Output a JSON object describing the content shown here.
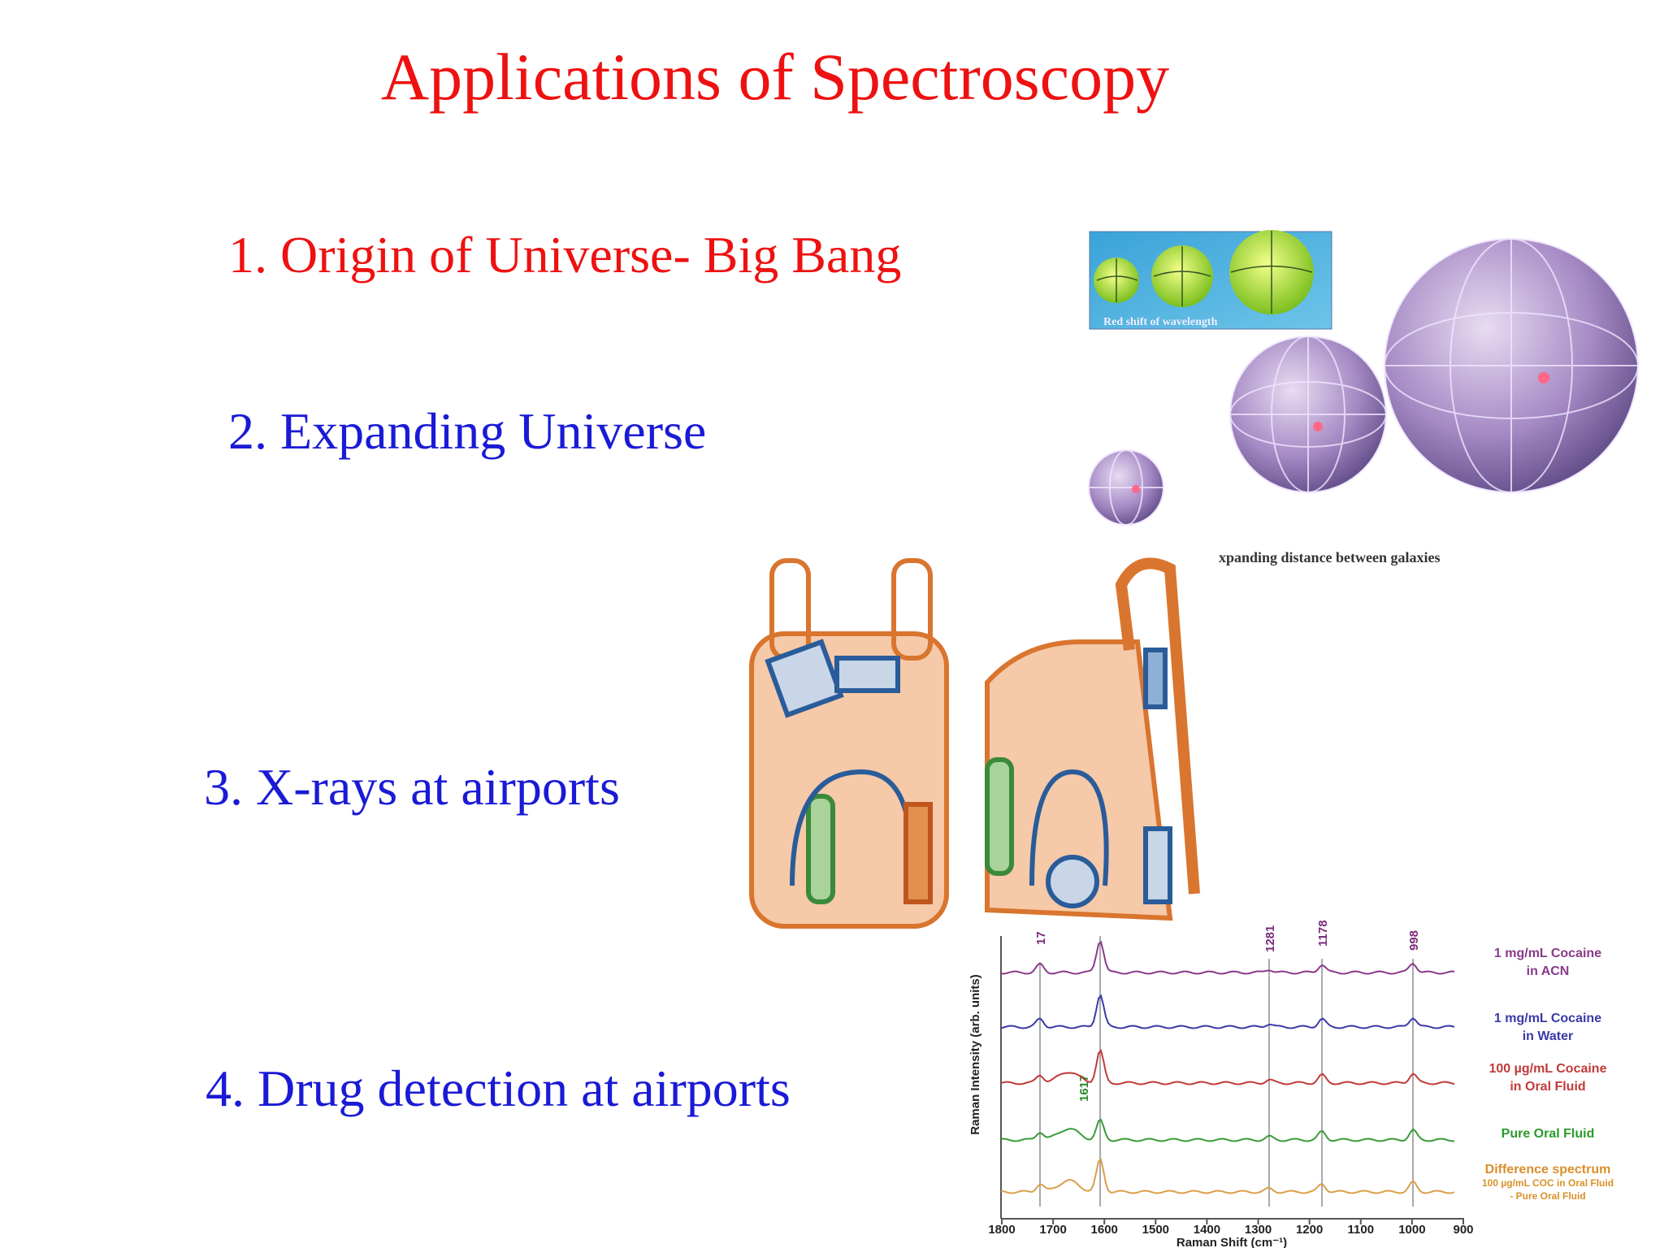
{
  "title": "Applications of Spectroscopy",
  "items": [
    "1. Origin of Universe- Big Bang",
    "2. Expanding Universe",
    "3. X-rays at airports",
    "4. Drug detection at airports"
  ],
  "images": {
    "redshift_caption": "Red shift of wavelength",
    "galaxies_caption": "xpanding distance between galaxies"
  },
  "raman": {
    "peak_labels": [
      "17",
      "1281",
      "1178",
      "998",
      "1617"
    ],
    "legend": [
      [
        "1 mg/mL Cocaine",
        "in ACN"
      ],
      [
        "1 mg/mL Cocaine",
        "in Water"
      ],
      [
        "100 µg/mL Cocaine",
        "in Oral Fluid"
      ],
      [
        "Pure Oral Fluid"
      ],
      [
        "Difference spectrum",
        "100 µg/mL COC in Oral Fluid",
        "- Pure Oral Fluid"
      ]
    ],
    "y_label": "Raman Intensity (arb. units)",
    "x_label": "Raman Shift (cm⁻¹)",
    "x_ticks": [
      "1800",
      "1700",
      "1600",
      "1500",
      "1400",
      "1300",
      "1200",
      "1100",
      "1000",
      "900"
    ]
  }
}
